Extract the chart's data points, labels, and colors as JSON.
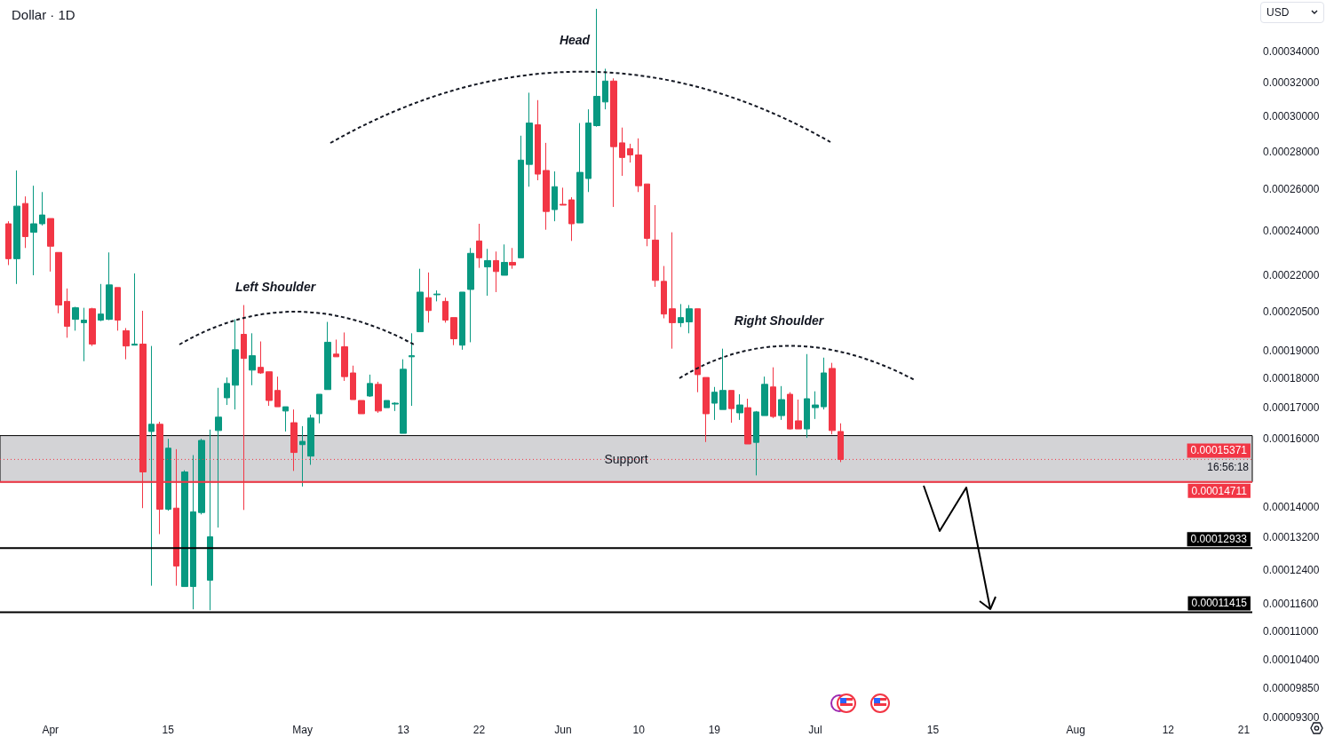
{
  "chart_data": {
    "type": "candlestick",
    "title": "Dollar · 1D",
    "x": [
      "--03-27",
      "--03-28",
      "--03-29",
      "--03-30",
      "--03-31",
      "--04-01",
      "--04-02",
      "--04-03",
      "--04-04",
      "--04-05",
      "--04-06",
      "--04-07",
      "--04-08",
      "--04-09",
      "--04-10",
      "--04-11",
      "--04-12",
      "--04-13",
      "--04-14",
      "--04-15",
      "--04-16",
      "--04-17",
      "--04-18",
      "--04-19",
      "--04-20",
      "--04-21",
      "--04-22",
      "--04-23",
      "--04-24",
      "--04-25",
      "--04-26",
      "--04-27",
      "--04-28",
      "--04-29",
      "--04-30",
      "--05-01",
      "--05-02",
      "--05-03",
      "--05-04",
      "--05-05",
      "--05-06",
      "--05-07",
      "--05-08",
      "--05-09",
      "--05-10",
      "--05-11",
      "--05-12",
      "--05-13",
      "--05-14",
      "--05-15",
      "--05-16",
      "--05-17",
      "--05-18",
      "--05-19",
      "--05-20",
      "--05-21",
      "--05-22",
      "--05-23",
      "--05-24",
      "--05-25",
      "--05-26",
      "--05-27",
      "--05-28",
      "--05-29",
      "--05-30",
      "--05-31",
      "--06-01",
      "--06-02",
      "--06-03",
      "--06-04",
      "--06-05",
      "--06-06",
      "--06-07",
      "--06-08",
      "--06-09",
      "--06-10",
      "--06-11",
      "--06-12",
      "--06-13",
      "--06-14",
      "--06-15",
      "--06-16",
      "--06-17",
      "--06-18",
      "--06-19",
      "--06-20",
      "--06-21",
      "--06-22",
      "--06-23",
      "--06-24",
      "--06-25",
      "--06-26",
      "--06-27",
      "--06-28",
      "--06-29",
      "--06-30",
      "--07-01",
      "--07-02",
      "--07-03",
      "--07-04"
    ],
    "ohlc": [
      [
        0.0002432,
        0.0002444,
        0.0002244,
        0.0002272
      ],
      [
        0.0002272,
        0.0002698,
        0.0002163,
        0.0002517
      ],
      [
        0.000253,
        0.0002565,
        0.000232,
        0.0002372
      ],
      [
        0.0002392,
        0.0002619,
        0.00022,
        0.0002432
      ],
      [
        0.0002432,
        0.0002587,
        0.0002424,
        0.0002474
      ],
      [
        0.0002457,
        0.0002457,
        0.0002216,
        0.0002328
      ],
      [
        0.00023,
        0.00023,
        0.0002043,
        0.0002076
      ],
      [
        0.0002091,
        0.0002144,
        0.0001948,
        0.0001992
      ],
      [
        0.0002019,
        0.0002069,
        0.0001975,
        0.0002065
      ],
      [
        0.0002006,
        0.0002065,
        0.0001861,
        0.0002016
      ],
      [
        0.0002061,
        0.0002065,
        0.0001917,
        0.0001924
      ],
      [
        0.0002016,
        0.0002163,
        0.0002012,
        0.000204
      ],
      [
        0.0002019,
        0.00023,
        0.0002016,
        0.0002159
      ],
      [
        0.0002148,
        0.0002148,
        0.0001975,
        0.0002016
      ],
      [
        0.0001975,
        0.0001985,
        0.0001868,
        0.0001917
      ],
      [
        0.000192,
        0.0002208,
        0.000192,
        0.0001924
      ],
      [
        0.0001924,
        0.0002053,
        0.0001398,
        0.00015
      ],
      [
        0.0001623,
        0.0001917,
        0.0001202,
        0.0001646
      ],
      [
        0.0001646,
        0.0001654,
        0.0001329,
        0.0001395
      ],
      [
        0.0001395,
        0.00016,
        0.0001391,
        0.0001571
      ],
      [
        0.0001398,
        0.0001568,
        0.0001202,
        0.0001249
      ],
      [
        0.00012,
        0.0001505,
        0.00012,
        0.00015
      ],
      [
        0.00012,
        0.000155,
        0.0001148,
        0.0001388
      ],
      [
        0.0001386,
        0.00016,
        0.0001381,
        0.0001595
      ],
      [
        0.0001215,
        0.0001629,
        0.0001146,
        0.0001322
      ],
      [
        0.0001626,
        0.0001767,
        0.0001346,
        0.0001669
      ],
      [
        0.0001733,
        0.0001803,
        0.0001709,
        0.0001782
      ],
      [
        0.0001776,
        0.0002019,
        0.0001694,
        0.0001903
      ],
      [
        0.0001961,
        0.0002076,
        0.0001393,
        0.0001871
      ],
      [
        0.0001829,
        0.0001965,
        0.0001776,
        0.0001881
      ],
      [
        0.0001839,
        0.0001934,
        0.0001816,
        0.0001819
      ],
      [
        0.0001823,
        0.0001823,
        0.0001706,
        0.0001724
      ],
      [
        0.0001758,
        0.0001806,
        0.0001703,
        0.0001703
      ],
      [
        0.0001689,
        0.0001703,
        0.0001623,
        0.0001703
      ],
      [
        0.0001651,
        0.0001694,
        0.0001503,
        0.0001558
      ],
      [
        0.0001582,
        0.000164,
        0.0001458,
        0.0001592
      ],
      [
        0.0001547,
        0.0001677,
        0.0001521,
        0.0001666
      ],
      [
        0.000168,
        0.0001745,
        0.0001649,
        0.0001745
      ],
      [
        0.0001761,
        0.0002009,
        0.0001761,
        0.0001931
      ],
      [
        0.0001887,
        0.0001941,
        0.0001877,
        0.0001877
      ],
      [
        0.0001914,
        0.0001968,
        0.0001791,
        0.0001806
      ],
      [
        0.0001819,
        0.0001845,
        0.0001727,
        0.0001727
      ],
      [
        0.0001724,
        0.0001724,
        0.000168,
        0.000168
      ],
      [
        0.0001739,
        0.0001813,
        0.0001736,
        0.0001782
      ],
      [
        0.0001779,
        0.0001788,
        0.0001683,
        0.0001689
      ],
      [
        0.00017,
        0.0001724,
        0.00017,
        0.0001724
      ],
      [
        0.0001712,
        0.0001718,
        0.0001689,
        0.0001715
      ],
      [
        0.0001617,
        0.0001868,
        0.0001617,
        0.0001832
      ],
      [
        0.0001877,
        0.0001965,
        0.0001706,
        0.0001881
      ],
      [
        0.0001971,
        0.0002228,
        0.0001971,
        0.0002129
      ],
      [
        0.0002106,
        0.0002212,
        0.0002006,
        0.0002054
      ],
      [
        0.0002118,
        0.0002136,
        0.0002091,
        0.0002121
      ],
      [
        0.0002091,
        0.0002106,
        0.0002006,
        0.0002016
      ],
      [
        0.0002026,
        0.0002026,
        0.000192,
        0.0001944
      ],
      [
        0.000192,
        0.0002129,
        0.0001903,
        0.0002129
      ],
      [
        0.000214,
        0.000232,
        0.0001931,
        0.0002296
      ],
      [
        0.0002352,
        0.0002432,
        0.0002232,
        0.0002276
      ],
      [
        0.0002236,
        0.0002316,
        0.0002114,
        0.0002264
      ],
      [
        0.0002264,
        0.0002304,
        0.0002129,
        0.0002216
      ],
      [
        0.00022,
        0.0002336,
        0.00022,
        0.0002256
      ],
      [
        0.0002256,
        0.000232,
        0.0002228,
        0.0002244
      ],
      [
        0.0002276,
        0.0002887,
        0.0002276,
        0.0002753
      ],
      [
        0.000273,
        0.0003139,
        0.0002614,
        0.0002959
      ],
      [
        0.0002949,
        0.0003094,
        0.0002647,
        0.0002679
      ],
      [
        0.0002698,
        0.0002847,
        0.0002404,
        0.0002491
      ],
      [
        0.00025,
        0.0002693,
        0.0002444,
        0.0002614
      ],
      [
        0.0002526,
        0.0002609,
        0.0002522,
        0.0002522
      ],
      [
        0.0002548,
        0.0002561,
        0.0002352,
        0.0002432
      ],
      [
        0.0002436,
        0.0002959,
        0.0002436,
        0.0002688
      ],
      [
        0.0002656,
        0.0003039,
        0.0002587,
        0.0002959
      ],
      [
        0.0002944,
        0.0003696,
        0.0002938,
        0.0003117
      ],
      [
        0.0003083,
        0.0003289,
        0.0003039,
        0.0003211
      ],
      [
        0.0003211,
        0.0003228,
        0.0002513,
        0.0002826
      ],
      [
        0.0002847,
        0.0002933,
        0.000267,
        0.0002767
      ],
      [
        0.0002815,
        0.0002842,
        0.000274,
        0.0002781
      ],
      [
        0.0002781,
        0.0002872,
        0.0002587,
        0.0002619
      ],
      [
        0.0002628,
        0.0002628,
        0.0002328,
        0.0002364
      ],
      [
        0.0002356,
        0.0002522,
        0.0002151,
        0.0002178
      ],
      [
        0.0002174,
        0.000224,
        0.0002023,
        0.000204
      ],
      [
        0.0002061,
        0.0002392,
        0.0001907,
        0.0002006
      ],
      [
        0.0002006,
        0.000208,
        0.0001989,
        0.0002026
      ],
      [
        0.0002009,
        0.0002076,
        0.0001965,
        0.0002061
      ],
      [
        0.0002061,
        0.0002061,
        0.0001752,
        0.0001813
      ],
      [
        0.0001803,
        0.0001803,
        0.000159,
        0.000168
      ],
      [
        0.0001715,
        0.000177,
        0.000166,
        0.0001752
      ],
      [
        0.0001694,
        0.0001907,
        0.0001694,
        0.0001758
      ],
      [
        0.0001758,
        0.0001758,
        0.0001651,
        0.0001697
      ],
      [
        0.0001683,
        0.0001745,
        0.000166,
        0.0001709
      ],
      [
        0.00017,
        0.000173,
        0.0001584,
        0.0001584
      ],
      [
        0.0001589,
        0.0001689,
        0.000149,
        0.0001686
      ],
      [
        0.0001674,
        0.0001806,
        0.0001674,
        0.0001779
      ],
      [
        0.000177,
        0.0001839,
        0.0001666,
        0.0001671
      ],
      [
        0.0001674,
        0.0001773,
        0.000166,
        0.0001727
      ],
      [
        0.0001745,
        0.0001752,
        0.0001629,
        0.0001631
      ],
      [
        0.0001657,
        0.0001727,
        0.0001631,
        0.0001631
      ],
      [
        0.0001631,
        0.0001887,
        0.0001603,
        0.000173
      ],
      [
        0.00017,
        0.0001755,
        0.0001663,
        0.0001709
      ],
      [
        0.0001703,
        0.0001874,
        0.0001694,
        0.0001819
      ],
      [
        0.0001835,
        0.0001855,
        0.0001614,
        0.0001626
      ],
      [
        0.0001623,
        0.0001649,
        0.0001529,
        0.00015371
      ]
    ],
    "colors": [
      "#f23645",
      "#089981",
      "#f23645",
      "#089981",
      "#089981",
      "#f23645",
      "#f23645",
      "#f23645",
      "#089981",
      "#089981",
      "#f23645",
      "#089981",
      "#089981",
      "#f23645",
      "#f23645",
      "#089981",
      "#f23645",
      "#089981",
      "#f23645",
      "#089981",
      "#f23645",
      "#089981",
      "#089981",
      "#089981",
      "#089981",
      "#089981",
      "#089981",
      "#089981",
      "#f23645",
      "#089981",
      "#f23645",
      "#f23645",
      "#f23645",
      "#089981",
      "#f23645",
      "#089981",
      "#089981",
      "#089981",
      "#089981",
      "#f23645",
      "#f23645",
      "#f23645",
      "#f23645",
      "#089981",
      "#f23645",
      "#089981",
      "#089981",
      "#089981",
      "#089981",
      "#089981",
      "#f23645",
      "#089981",
      "#f23645",
      "#f23645",
      "#089981",
      "#089981",
      "#f23645",
      "#089981",
      "#f23645",
      "#089981",
      "#f23645",
      "#089981",
      "#089981",
      "#f23645",
      "#f23645",
      "#089981",
      "#f23645",
      "#f23645",
      "#089981",
      "#089981",
      "#089981",
      "#089981",
      "#f23645",
      "#f23645",
      "#f23645",
      "#f23645",
      "#f23645",
      "#f23645",
      "#f23645",
      "#f23645",
      "#089981",
      "#089981",
      "#f23645",
      "#f23645",
      "#089981",
      "#089981",
      "#f23645",
      "#089981",
      "#f23645",
      "#089981",
      "#089981",
      "#f23645",
      "#089981",
      "#f23645",
      "#f23645",
      "#089981",
      "#089981",
      "#089981",
      "#f23645",
      "#f23645"
    ],
    "log": true,
    "xlim": [
      "--03-26",
      "--08-22"
    ],
    "xticks": [
      {
        "value": "--04-01",
        "label": "Apr"
      },
      {
        "value": "--04-15",
        "label": "15"
      },
      {
        "value": "--05-01",
        "label": "May"
      },
      {
        "value": "--05-13",
        "label": "13"
      },
      {
        "value": "--05-22",
        "label": "22"
      },
      {
        "value": "--06-01",
        "label": "Jun"
      },
      {
        "value": "--06-10",
        "label": "10"
      },
      {
        "value": "--06-19",
        "label": "19"
      },
      {
        "value": "--07-01",
        "label": "Jul"
      },
      {
        "value": "--07-15",
        "label": "15"
      },
      {
        "value": "--08-01",
        "label": "Aug"
      },
      {
        "value": "--08-12",
        "label": "12"
      },
      {
        "value": "--08-21",
        "label": "21"
      }
    ],
    "ylim": [
      9.3e-05,
      0.000376
    ],
    "yticks": [
      {
        "value": 0.00034,
        "label": "0.00034000"
      },
      {
        "value": 0.00032,
        "label": "0.00032000"
      },
      {
        "value": 0.0003,
        "label": "0.00030000"
      },
      {
        "value": 0.00028,
        "label": "0.00028000"
      },
      {
        "value": 0.00026,
        "label": "0.00026000"
      },
      {
        "value": 0.00024,
        "label": "0.00024000"
      },
      {
        "value": 0.00022,
        "label": "0.00022000"
      },
      {
        "value": 0.000205,
        "label": "0.00020500"
      },
      {
        "value": 0.00019,
        "label": "0.00019000"
      },
      {
        "value": 0.00018,
        "label": "0.00018000"
      },
      {
        "value": 0.00017,
        "label": "0.00017000"
      },
      {
        "value": 0.00016,
        "label": "0.00016000"
      },
      {
        "value": 0.00014,
        "label": "0.00014000"
      },
      {
        "value": 0.000132,
        "label": "0.00013200"
      },
      {
        "value": 0.000124,
        "label": "0.00012400"
      },
      {
        "value": 0.000116,
        "label": "0.00011600"
      },
      {
        "value": 0.00011,
        "label": "0.00011000"
      },
      {
        "value": 0.000104,
        "label": "0.00010400"
      },
      {
        "value": 9.85e-05,
        "label": "0.00009850"
      },
      {
        "value": 9.3e-05,
        "label": "0.00009300"
      }
    ],
    "bands": [
      {
        "axis": "y",
        "from": 0.00014711,
        "to": 0.000161,
        "label": "Support",
        "color": "#d3d3d6"
      }
    ],
    "ref_lines": [
      {
        "axis": "y",
        "value": 0.00015371,
        "label": "0.00015371",
        "color": "#f23645",
        "line_style": "dotted"
      },
      {
        "axis": "y",
        "value": 0.00014711,
        "label": "0.00014711",
        "color": "#f23645",
        "line_style": "solid"
      },
      {
        "axis": "y",
        "value": 0.00012933,
        "label": "0.00012933",
        "color": "#000000",
        "line_style": "solid"
      },
      {
        "axis": "y",
        "value": 0.00011415,
        "label": "0.00011415",
        "color": "#000000",
        "line_style": "solid"
      }
    ],
    "annotations": [
      "Head",
      "Left Shoulder",
      "Right Shoulder",
      "16:56:18",
      "USD"
    ]
  }
}
